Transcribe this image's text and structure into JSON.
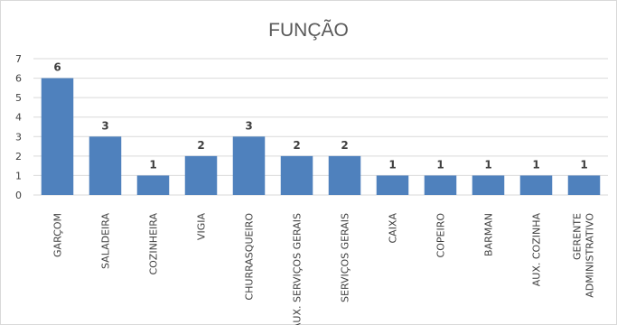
{
  "chart_data": {
    "type": "bar",
    "title": "FUNÇÃO",
    "xlabel": "",
    "ylabel": "",
    "categories": [
      "GARÇOM",
      "SALADEIRA",
      "COZINHEIRA",
      "VIGIA",
      "CHURRASQUEIRO",
      "AUX. SERVIÇOS GERAIS",
      "SERVIÇOS GERAIS",
      "CAIXA",
      "COPEIRO",
      "BARMAN",
      "AUX. COZINHA",
      "GERENTE ADMINISTRATIVO"
    ],
    "values": [
      6,
      3,
      1,
      2,
      3,
      2,
      2,
      1,
      1,
      1,
      1,
      1
    ],
    "ylim": [
      0,
      7
    ],
    "yticks": [
      0,
      1,
      2,
      3,
      4,
      5,
      6,
      7
    ],
    "grid": true,
    "legend": "none",
    "colors": {
      "bar": "#4f81bd",
      "grid": "#d9d9d9",
      "text": "#595959",
      "label": "#404040"
    }
  }
}
